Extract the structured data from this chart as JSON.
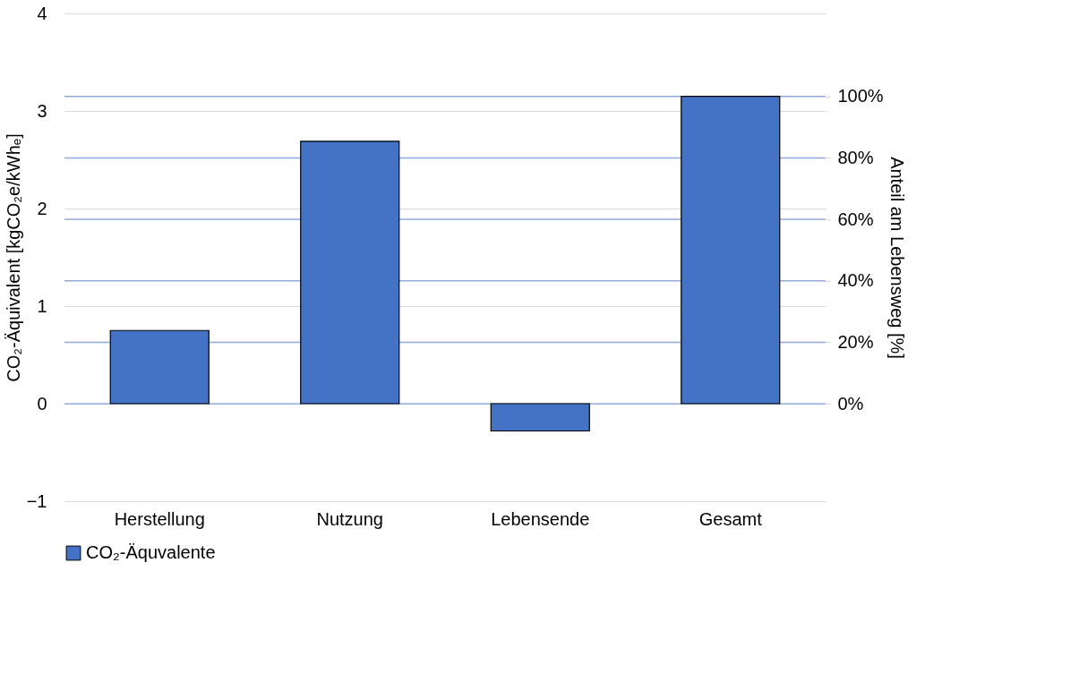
{
  "chart_data": {
    "type": "bar",
    "categories": [
      "Herstellung",
      "Nutzung",
      "Lebensende",
      "Gesamt"
    ],
    "series": [
      {
        "name": "CO₂-Äquvalente",
        "color": "#4472c4",
        "values": [
          0.75,
          2.69,
          -0.28,
          3.15
        ]
      }
    ],
    "ylabel": "CO₂-Äquivalent [kgCO₂e/kWhₑ]",
    "y2label": "Anteil am Lebensweg [%]",
    "ylim": [
      -1,
      4
    ],
    "yticks": [
      -1,
      0,
      1,
      2,
      3,
      4
    ],
    "y2lim": [
      -31.7,
      127
    ],
    "y2ticks": [
      {
        "value": 0,
        "label": "0%"
      },
      {
        "value": 20,
        "label": "20%"
      },
      {
        "value": 40,
        "label": "40%"
      },
      {
        "value": 60,
        "label": "60%"
      },
      {
        "value": 80,
        "label": "80%"
      },
      {
        "value": 100,
        "label": "100%"
      }
    ],
    "grid": "y",
    "legend": "bottom"
  }
}
